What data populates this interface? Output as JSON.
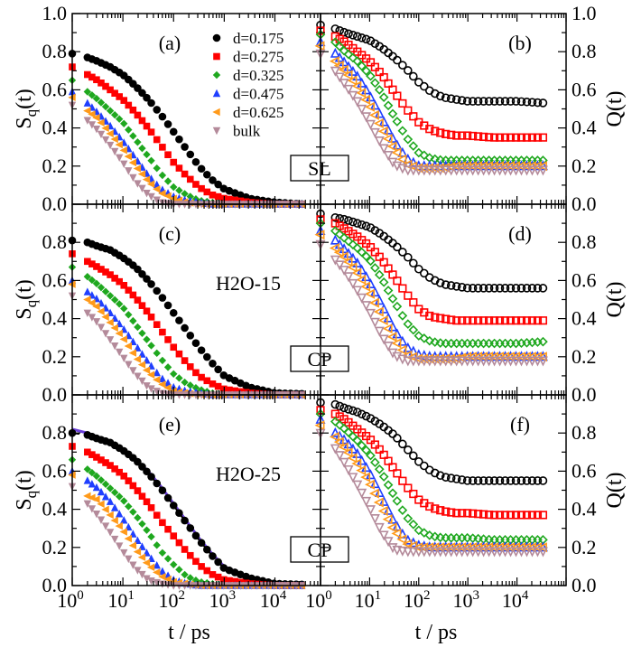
{
  "chart_data": {
    "type": "scatter",
    "x_scale": "log",
    "x_log10": [
      0,
      0.3,
      0.5,
      0.75,
      1,
      1.25,
      1.5,
      1.75,
      2,
      2.25,
      2.5,
      2.75,
      3,
      3.5,
      4,
      4.6
    ],
    "xlabel": "t / ps",
    "x_tick_labels": [
      {
        "base": "10",
        "exp": "0"
      },
      {
        "base": "10",
        "exp": "1"
      },
      {
        "base": "10",
        "exp": "2"
      },
      {
        "base": "10",
        "exp": "3"
      },
      {
        "base": "10",
        "exp": "4"
      }
    ],
    "ylim": [
      0,
      1.0
    ],
    "y_tick_labels_full": [
      "0.0",
      "0.2",
      "0.4",
      "0.6",
      "0.8",
      "1.0"
    ],
    "y_tick_labels_short": [
      "0.0",
      "0.2",
      "0.4",
      "0.6",
      "0.8"
    ],
    "left_ylabel": {
      "main": "S",
      "sub": "q",
      "tail": "(t)"
    },
    "right_ylabel": "Q(t)",
    "legend": {
      "placement": "top-right of panel (a)",
      "entries": [
        "d=0.175",
        "d=0.275",
        "d=0.325",
        "d=0.475",
        "d=0.625",
        "bulk"
      ]
    },
    "series_colors": [
      "#000000",
      "#ff0000",
      "#1fa81f",
      "#1f3fff",
      "#ff9a1a",
      "#b48a9a"
    ],
    "series_markers": [
      "circle",
      "square",
      "diamond",
      "triangle-up",
      "triangle-left",
      "triangle-down"
    ],
    "panels": [
      {
        "label": "(a)",
        "quantity": "Sq(t)",
        "side": "left",
        "box": "SL",
        "system": "",
        "series": [
          [
            0.79,
            0.77,
            0.75,
            0.72,
            0.68,
            0.62,
            0.55,
            0.47,
            0.38,
            0.29,
            0.2,
            0.13,
            0.08,
            0.03,
            0.01,
            0.0
          ],
          [
            0.72,
            0.68,
            0.65,
            0.6,
            0.55,
            0.48,
            0.4,
            0.31,
            0.22,
            0.15,
            0.09,
            0.05,
            0.03,
            0.01,
            0.0,
            0.0
          ],
          [
            0.65,
            0.59,
            0.55,
            0.49,
            0.43,
            0.34,
            0.25,
            0.16,
            0.09,
            0.05,
            0.02,
            0.01,
            0.0,
            0.0,
            0.0,
            0.0
          ],
          [
            0.59,
            0.53,
            0.48,
            0.41,
            0.33,
            0.24,
            0.15,
            0.08,
            0.04,
            0.02,
            0.01,
            0.0,
            0.0,
            0.0,
            0.0,
            0.0
          ],
          [
            0.56,
            0.49,
            0.45,
            0.37,
            0.29,
            0.2,
            0.12,
            0.06,
            0.03,
            0.01,
            0.0,
            0.0,
            0.0,
            0.0,
            0.0,
            0.0
          ],
          [
            0.52,
            0.44,
            0.39,
            0.31,
            0.22,
            0.12,
            0.05,
            0.01,
            0.0,
            0.0,
            0.0,
            0.0,
            0.0,
            0.0,
            0.0,
            0.0
          ]
        ]
      },
      {
        "label": "(b)",
        "quantity": "Q(t)",
        "side": "right",
        "box": "",
        "system": "",
        "series": [
          [
            0.94,
            0.92,
            0.9,
            0.88,
            0.86,
            0.82,
            0.77,
            0.71,
            0.64,
            0.59,
            0.56,
            0.55,
            0.54,
            0.54,
            0.54,
            0.53
          ],
          [
            0.91,
            0.88,
            0.85,
            0.8,
            0.75,
            0.68,
            0.59,
            0.5,
            0.43,
            0.39,
            0.37,
            0.36,
            0.36,
            0.35,
            0.35,
            0.35
          ],
          [
            0.89,
            0.85,
            0.8,
            0.75,
            0.68,
            0.58,
            0.46,
            0.35,
            0.27,
            0.24,
            0.23,
            0.23,
            0.23,
            0.23,
            0.23,
            0.23
          ],
          [
            0.85,
            0.79,
            0.74,
            0.67,
            0.57,
            0.45,
            0.33,
            0.24,
            0.2,
            0.2,
            0.2,
            0.2,
            0.2,
            0.2,
            0.2,
            0.2
          ],
          [
            0.83,
            0.75,
            0.7,
            0.62,
            0.52,
            0.4,
            0.29,
            0.21,
            0.19,
            0.19,
            0.19,
            0.2,
            0.2,
            0.2,
            0.2,
            0.2
          ],
          [
            0.79,
            0.7,
            0.63,
            0.54,
            0.43,
            0.31,
            0.21,
            0.18,
            0.18,
            0.18,
            0.18,
            0.18,
            0.18,
            0.18,
            0.18,
            0.18
          ]
        ]
      },
      {
        "label": "(c)",
        "quantity": "Sq(t)",
        "side": "left",
        "box": "CP",
        "system": "H2O-15",
        "series": [
          [
            0.81,
            0.8,
            0.78,
            0.76,
            0.72,
            0.67,
            0.6,
            0.52,
            0.43,
            0.34,
            0.25,
            0.17,
            0.1,
            0.04,
            0.01,
            0.005
          ],
          [
            0.74,
            0.7,
            0.67,
            0.63,
            0.58,
            0.51,
            0.43,
            0.34,
            0.25,
            0.17,
            0.1,
            0.06,
            0.03,
            0.01,
            0.0,
            0.0
          ],
          [
            0.67,
            0.62,
            0.58,
            0.52,
            0.46,
            0.37,
            0.28,
            0.19,
            0.11,
            0.06,
            0.03,
            0.01,
            0.0,
            0.0,
            0.0,
            0.0
          ],
          [
            0.6,
            0.54,
            0.5,
            0.43,
            0.35,
            0.26,
            0.17,
            0.09,
            0.04,
            0.02,
            0.01,
            0.0,
            0.0,
            0.0,
            0.0,
            0.0
          ],
          [
            0.58,
            0.5,
            0.46,
            0.38,
            0.3,
            0.2,
            0.12,
            0.06,
            0.02,
            0.01,
            0.0,
            0.0,
            0.0,
            0.0,
            0.0,
            0.0
          ],
          [
            0.52,
            0.43,
            0.38,
            0.29,
            0.2,
            0.11,
            0.04,
            0.01,
            0.0,
            0.0,
            0.0,
            0.0,
            0.0,
            0.0,
            0.0,
            0.0
          ]
        ]
      },
      {
        "label": "(d)",
        "quantity": "Q(t)",
        "side": "right",
        "box": "",
        "system": "",
        "series": [
          [
            0.95,
            0.93,
            0.92,
            0.9,
            0.88,
            0.84,
            0.79,
            0.73,
            0.66,
            0.61,
            0.58,
            0.57,
            0.56,
            0.56,
            0.56,
            0.56
          ],
          [
            0.92,
            0.9,
            0.87,
            0.83,
            0.78,
            0.71,
            0.62,
            0.53,
            0.45,
            0.41,
            0.4,
            0.39,
            0.39,
            0.39,
            0.39,
            0.39
          ],
          [
            0.9,
            0.86,
            0.82,
            0.77,
            0.71,
            0.61,
            0.49,
            0.38,
            0.31,
            0.28,
            0.27,
            0.27,
            0.27,
            0.27,
            0.27,
            0.28
          ],
          [
            0.86,
            0.81,
            0.76,
            0.69,
            0.59,
            0.47,
            0.34,
            0.25,
            0.21,
            0.2,
            0.2,
            0.2,
            0.2,
            0.2,
            0.2,
            0.2
          ],
          [
            0.84,
            0.77,
            0.72,
            0.64,
            0.54,
            0.41,
            0.29,
            0.21,
            0.19,
            0.19,
            0.19,
            0.19,
            0.2,
            0.2,
            0.2,
            0.2
          ],
          [
            0.79,
            0.71,
            0.65,
            0.55,
            0.44,
            0.31,
            0.21,
            0.18,
            0.18,
            0.18,
            0.18,
            0.18,
            0.18,
            0.18,
            0.18,
            0.18
          ]
        ]
      },
      {
        "label": "(e)",
        "quantity": "Sq(t)",
        "side": "left",
        "box": "CP",
        "system": "H2O-25",
        "series": [
          [
            0.8,
            0.79,
            0.77,
            0.75,
            0.71,
            0.66,
            0.59,
            0.51,
            0.42,
            0.33,
            0.24,
            0.16,
            0.09,
            0.04,
            0.01,
            0.005
          ],
          [
            0.73,
            0.7,
            0.67,
            0.63,
            0.58,
            0.51,
            0.43,
            0.34,
            0.26,
            0.18,
            0.11,
            0.06,
            0.03,
            0.01,
            0.0,
            0.0
          ],
          [
            0.66,
            0.61,
            0.57,
            0.51,
            0.45,
            0.37,
            0.28,
            0.18,
            0.11,
            0.05,
            0.02,
            0.01,
            0.0,
            0.0,
            0.0,
            0.0
          ],
          [
            0.6,
            0.55,
            0.51,
            0.44,
            0.35,
            0.25,
            0.16,
            0.08,
            0.03,
            0.01,
            0.0,
            0.0,
            0.0,
            0.0,
            0.0,
            0.0
          ],
          [
            0.58,
            0.47,
            0.45,
            0.37,
            0.29,
            0.19,
            0.11,
            0.05,
            0.02,
            0.01,
            0.0,
            0.0,
            0.0,
            0.0,
            0.0,
            0.0
          ],
          [
            0.52,
            0.43,
            0.37,
            0.28,
            0.18,
            0.09,
            0.03,
            0.01,
            0.0,
            0.0,
            0.0,
            0.0,
            0.0,
            0.0,
            0.0,
            0.0
          ]
        ],
        "fit_lines": [
          {
            "color": "#6a3fd8",
            "style": "solid",
            "values": [
              0.82,
              0.8,
              0.78,
              0.75,
              0.71,
              0.66,
              0.6,
              0.52,
              0.43,
              0.34,
              0.25,
              0.17,
              0.1,
              0.04,
              0.01,
              0.0
            ]
          },
          {
            "color": "#000000",
            "style": "dashed",
            "values": [
              0.8,
              0.79,
              0.77,
              0.74,
              0.7,
              0.65,
              0.59,
              0.51,
              0.42,
              0.33,
              0.24,
              0.16,
              0.09,
              0.035,
              0.01,
              0.0
            ]
          }
        ]
      },
      {
        "label": "(f)",
        "quantity": "Q(t)",
        "side": "right",
        "box": "",
        "system": "",
        "series": [
          [
            0.96,
            0.95,
            0.93,
            0.91,
            0.88,
            0.84,
            0.79,
            0.72,
            0.65,
            0.6,
            0.57,
            0.56,
            0.55,
            0.55,
            0.55,
            0.55
          ],
          [
            0.92,
            0.9,
            0.87,
            0.82,
            0.77,
            0.7,
            0.61,
            0.52,
            0.45,
            0.41,
            0.39,
            0.38,
            0.38,
            0.37,
            0.37,
            0.37
          ],
          [
            0.9,
            0.86,
            0.82,
            0.76,
            0.69,
            0.59,
            0.47,
            0.36,
            0.29,
            0.26,
            0.25,
            0.25,
            0.25,
            0.24,
            0.24,
            0.24
          ],
          [
            0.87,
            0.8,
            0.76,
            0.69,
            0.59,
            0.46,
            0.33,
            0.24,
            0.21,
            0.2,
            0.2,
            0.2,
            0.2,
            0.2,
            0.2,
            0.2
          ],
          [
            0.84,
            0.78,
            0.72,
            0.64,
            0.54,
            0.41,
            0.29,
            0.22,
            0.2,
            0.2,
            0.2,
            0.2,
            0.2,
            0.2,
            0.2,
            0.2
          ],
          [
            0.8,
            0.72,
            0.64,
            0.53,
            0.41,
            0.28,
            0.19,
            0.18,
            0.18,
            0.18,
            0.18,
            0.18,
            0.18,
            0.18,
            0.18,
            0.18
          ]
        ]
      }
    ]
  }
}
